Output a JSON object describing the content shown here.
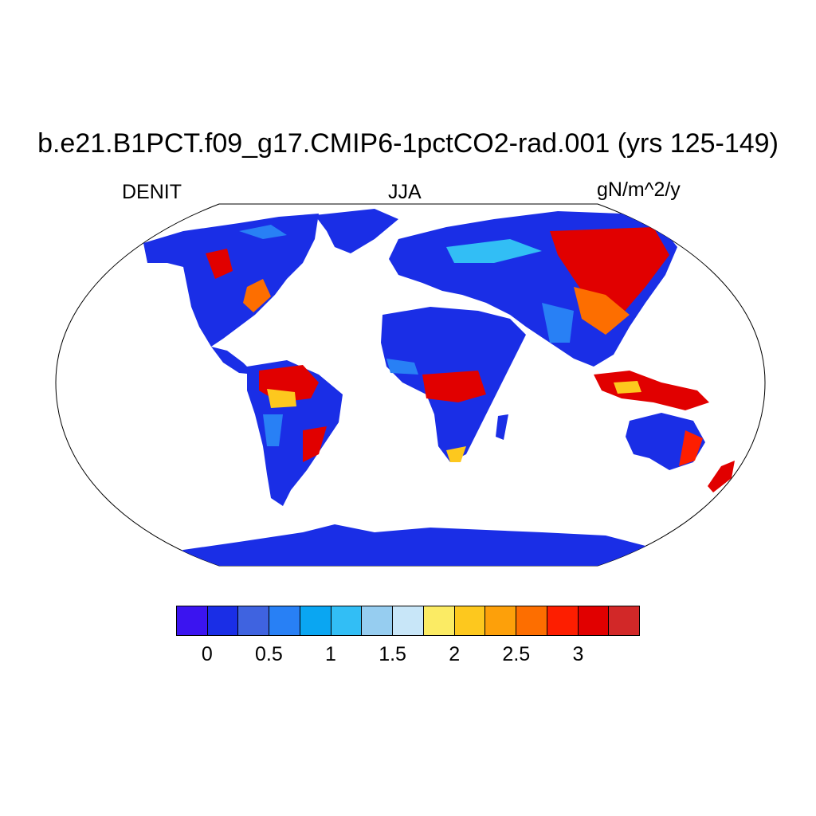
{
  "title": "b.e21.B1PCT.f09_g17.CMIP6-1pctCO2-rad.001 (yrs 125-149)",
  "left_label": "DENIT",
  "center_label": "JJA",
  "right_label": "gN/m^2/y",
  "colorbar": {
    "colors": [
      "#3b14f0",
      "#1a2ee6",
      "#3f63e0",
      "#2880f5",
      "#0aa6f2",
      "#32bef5",
      "#96cdf0",
      "#c8e6f8",
      "#fbeb64",
      "#fdc81e",
      "#fda00a",
      "#fd6e00",
      "#fd1e00",
      "#e10000",
      "#d22828"
    ],
    "tick_labels": [
      "0",
      "0.5",
      "1",
      "1.5",
      "2",
      "2.5",
      "3"
    ]
  },
  "map_colors": {
    "low": "#1a2ee6",
    "mid": "#2880f5",
    "light": "#32bef5",
    "yellow": "#fdc81e",
    "orange": "#fd6e00",
    "high": "#e10000"
  }
}
